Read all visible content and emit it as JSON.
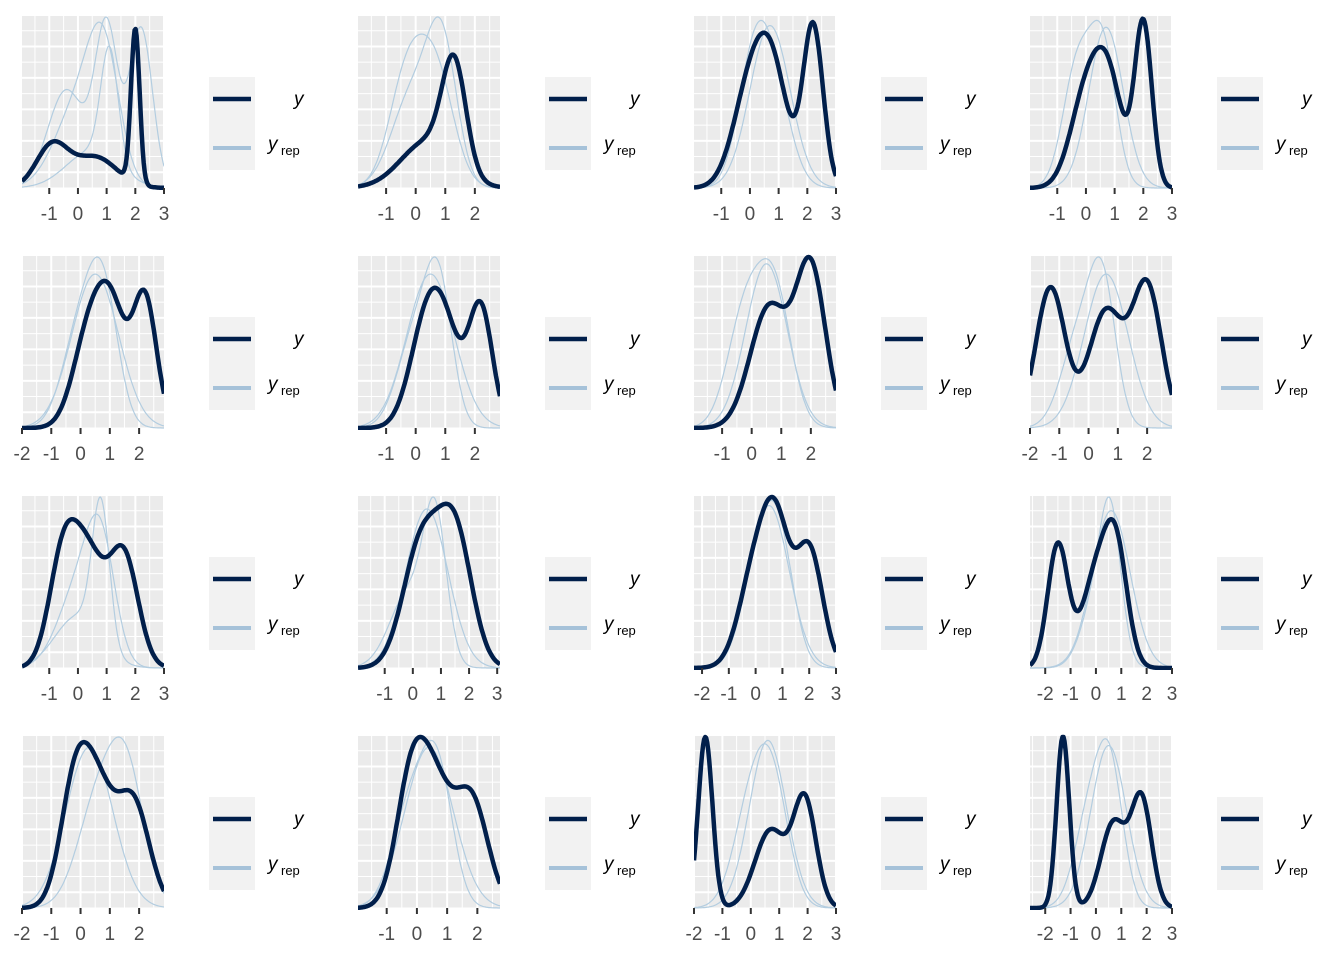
{
  "colors": {
    "y": "#011f4b",
    "yrep": "#b3cde0",
    "yrep_legend": "#a6c2d9",
    "panel_bg": "#ebebeb",
    "grid": "#ffffff",
    "legend_bg": "#f2f2f2",
    "tick_text": "#4d4d4d"
  },
  "legend": {
    "y_label": "y",
    "yrep_label": "y",
    "yrep_sub": "rep"
  },
  "chart_data": [
    {
      "type": "area",
      "xlim": [
        -1.95,
        3.0
      ],
      "ticks": [
        -1,
        0,
        1,
        2,
        3
      ],
      "tick_labels": [
        "-1",
        "0",
        "1",
        "2",
        "3"
      ],
      "y": {
        "m": [
          [
            0.6,
            0.75
          ],
          [
            -0.9,
            0.55
          ],
          [
            2.0,
            0.15
          ]
        ],
        "peak": 0.93
      },
      "yrep": [
        {
          "m": [
            [
              1.0,
              0.4
            ],
            [
              -0.4,
              0.65
            ],
            [
              2.2,
              0.4
            ]
          ],
          "peak": 1.0
        },
        {
          "m": [
            [
              0.5,
              0.9
            ],
            [
              1.1,
              0.3
            ]
          ],
          "peak": 0.83
        },
        {
          "m": [
            [
              0.9,
              0.55
            ],
            [
              0.0,
              0.8
            ]
          ],
          "peak": 0.97
        }
      ]
    },
    {
      "type": "area",
      "xlim": [
        -1.95,
        2.85
      ],
      "ticks": [
        -1,
        0,
        1,
        2
      ],
      "tick_labels": [
        "-1",
        "0",
        "1",
        "2"
      ],
      "y": {
        "m": [
          [
            0.4,
            0.9
          ],
          [
            1.3,
            0.4
          ]
        ],
        "peak": 0.78
      },
      "yrep": [
        {
          "m": [
            [
              0.9,
              0.5
            ],
            [
              -0.1,
              0.7
            ]
          ],
          "peak": 1.0
        },
        {
          "m": [
            [
              0.7,
              0.6
            ],
            [
              -0.3,
              0.6
            ]
          ],
          "peak": 0.9
        }
      ]
    },
    {
      "type": "area",
      "xlim": [
        -1.95,
        3.0
      ],
      "ticks": [
        -1,
        0,
        1,
        2,
        3
      ],
      "tick_labels": [
        "-1",
        "0",
        "1",
        "2",
        "3"
      ],
      "y": {
        "m": [
          [
            0.8,
            0.55
          ],
          [
            0.0,
            0.6
          ],
          [
            2.2,
            0.35
          ]
        ],
        "peak": 0.97
      },
      "yrep": [
        {
          "m": [
            [
              0.8,
              0.6
            ],
            [
              0.1,
              0.55
            ]
          ],
          "peak": 0.98
        },
        {
          "m": [
            [
              0.7,
              0.7
            ]
          ],
          "peak": 0.95
        }
      ]
    },
    {
      "type": "area",
      "xlim": [
        -1.95,
        3.0
      ],
      "ticks": [
        -1,
        0,
        1,
        2,
        3
      ],
      "tick_labels": [
        "-1",
        "0",
        "1",
        "2",
        "3"
      ],
      "y": {
        "m": [
          [
            0.8,
            0.5
          ],
          [
            0.0,
            0.55
          ],
          [
            2.0,
            0.3
          ]
        ],
        "peak": 0.99
      },
      "yrep": [
        {
          "m": [
            [
              0.6,
              0.45
            ],
            [
              -0.3,
              0.5
            ]
          ],
          "peak": 0.98
        },
        {
          "m": [
            [
              0.7,
              0.6
            ]
          ],
          "peak": 0.94
        }
      ]
    },
    {
      "type": "area",
      "xlim": [
        -2.0,
        2.85
      ],
      "ticks": [
        -2,
        -1,
        0,
        1,
        2
      ],
      "tick_labels": [
        "-2",
        "-1",
        "0",
        "1",
        "2"
      ],
      "y": {
        "m": [
          [
            0.3,
            0.55
          ],
          [
            1.1,
            0.5
          ],
          [
            2.2,
            0.4
          ]
        ],
        "peak": 0.86
      },
      "yrep": [
        {
          "m": [
            [
              0.8,
              0.5
            ],
            [
              0.0,
              0.6
            ]
          ],
          "peak": 1.0
        },
        {
          "m": [
            [
              0.5,
              0.8
            ]
          ],
          "peak": 0.9
        }
      ]
    },
    {
      "type": "area",
      "xlim": [
        -1.95,
        2.85
      ],
      "ticks": [
        -1,
        0,
        1,
        2
      ],
      "tick_labels": [
        "-1",
        "0",
        "1",
        "2"
      ],
      "y": {
        "m": [
          [
            0.3,
            0.55
          ],
          [
            1.0,
            0.55
          ],
          [
            2.2,
            0.4
          ]
        ],
        "peak": 0.82
      },
      "yrep": [
        {
          "m": [
            [
              0.8,
              0.45
            ],
            [
              0.0,
              0.6
            ]
          ],
          "peak": 1.0
        },
        {
          "m": [
            [
              0.5,
              0.8
            ]
          ],
          "peak": 0.9
        }
      ]
    },
    {
      "type": "area",
      "xlim": [
        -1.95,
        2.85
      ],
      "ticks": [
        -1,
        0,
        1,
        2
      ],
      "tick_labels": [
        "-1",
        "0",
        "1",
        "2"
      ],
      "y": {
        "m": [
          [
            0.6,
            0.65
          ],
          [
            2.0,
            0.5
          ]
        ],
        "peak": 1.0
      },
      "yrep": [
        {
          "m": [
            [
              0.5,
              0.7
            ]
          ],
          "peak": 0.96
        },
        {
          "m": [
            [
              0.8,
              0.55
            ],
            [
              -0.2,
              0.6
            ]
          ],
          "peak": 0.99
        }
      ]
    },
    {
      "type": "area",
      "xlim": [
        -2.0,
        2.85
      ],
      "ticks": [
        -2,
        -1,
        0,
        1,
        2
      ],
      "tick_labels": [
        "-2",
        "-1",
        "0",
        "1",
        "2"
      ],
      "y": {
        "m": [
          [
            0.6,
            0.6
          ],
          [
            -1.3,
            0.5
          ],
          [
            2.0,
            0.5
          ]
        ],
        "peak": 0.87
      },
      "yrep": [
        {
          "m": [
            [
              0.5,
              0.45
            ],
            [
              -0.3,
              0.6
            ]
          ],
          "peak": 1.0
        },
        {
          "m": [
            [
              0.6,
              0.75
            ]
          ],
          "peak": 0.9
        }
      ]
    },
    {
      "type": "area",
      "xlim": [
        -1.95,
        3.0
      ],
      "ticks": [
        -1,
        0,
        1,
        2,
        3
      ],
      "tick_labels": [
        "-1",
        "0",
        "1",
        "2",
        "3"
      ],
      "y": {
        "m": [
          [
            0.4,
            0.55
          ],
          [
            -0.5,
            0.5
          ],
          [
            1.6,
            0.5
          ]
        ],
        "peak": 0.87
      },
      "yrep": [
        {
          "m": [
            [
              0.8,
              0.3
            ],
            [
              0.0,
              0.8
            ]
          ],
          "peak": 1.0
        },
        {
          "m": [
            [
              0.8,
              0.5
            ],
            [
              0.0,
              0.7
            ]
          ],
          "peak": 0.9
        }
      ]
    },
    {
      "type": "area",
      "xlim": [
        -1.95,
        3.1
      ],
      "ticks": [
        -1,
        0,
        1,
        2,
        3
      ],
      "tick_labels": [
        "-1",
        "0",
        "1",
        "2",
        "3"
      ],
      "y": {
        "m": [
          [
            0.3,
            0.65
          ],
          [
            1.5,
            0.6
          ]
        ],
        "peak": 0.96
      },
      "yrep": [
        {
          "m": [
            [
              0.8,
              0.4
            ],
            [
              -0.1,
              0.7
            ]
          ],
          "peak": 1.0
        },
        {
          "m": [
            [
              0.5,
              0.75
            ]
          ],
          "peak": 0.93
        }
      ]
    },
    {
      "type": "area",
      "xlim": [
        -2.3,
        3.0
      ],
      "ticks": [
        -2,
        -1,
        0,
        1,
        2,
        3
      ],
      "tick_labels": [
        "-2",
        "-1",
        "0",
        "1",
        "2",
        "3"
      ],
      "y": {
        "m": [
          [
            0.8,
            0.5
          ],
          [
            0.0,
            0.6
          ],
          [
            2.0,
            0.5
          ]
        ],
        "peak": 1.0
      },
      "yrep": [
        {
          "m": [
            [
              0.5,
              0.75
            ]
          ],
          "peak": 0.95
        },
        {
          "m": [
            [
              0.9,
              0.55
            ],
            [
              0.1,
              0.6
            ]
          ],
          "peak": 0.98
        }
      ]
    },
    {
      "type": "area",
      "xlim": [
        -2.6,
        3.0
      ],
      "ticks": [
        -2,
        -1,
        0,
        1,
        2,
        3
      ],
      "tick_labels": [
        "-2",
        "-1",
        "0",
        "1",
        "2",
        "3"
      ],
      "y": {
        "m": [
          [
            0.8,
            0.45
          ],
          [
            0.0,
            0.55
          ],
          [
            -1.5,
            0.4
          ]
        ],
        "peak": 0.87
      },
      "yrep": [
        {
          "m": [
            [
              0.6,
              0.4
            ],
            [
              0.1,
              0.6
            ]
          ],
          "peak": 1.0
        },
        {
          "m": [
            [
              0.6,
              0.75
            ]
          ],
          "peak": 0.92
        }
      ]
    },
    {
      "type": "area",
      "xlim": [
        -2.0,
        2.85
      ],
      "ticks": [
        -2,
        -1,
        0,
        1,
        2
      ],
      "tick_labels": [
        "-2",
        "-1",
        "0",
        "1",
        "2"
      ],
      "y": {
        "m": [
          [
            0.6,
            0.55
          ],
          [
            -0.2,
            0.5
          ],
          [
            1.8,
            0.55
          ]
        ],
        "peak": 0.97
      },
      "yrep": [
        {
          "m": [
            [
              0.6,
              0.7
            ],
            [
              1.6,
              0.6
            ]
          ],
          "peak": 1.0
        },
        {
          "m": [
            [
              0.3,
              0.8
            ]
          ],
          "peak": 0.94
        }
      ]
    },
    {
      "type": "area",
      "xlim": [
        -1.95,
        2.75
      ],
      "ticks": [
        -1,
        0,
        1,
        2
      ],
      "tick_labels": [
        "-1",
        "0",
        "1",
        "2"
      ],
      "y": {
        "m": [
          [
            0.6,
            0.55
          ],
          [
            -0.2,
            0.5
          ],
          [
            1.8,
            0.55
          ]
        ],
        "peak": 1.0
      },
      "yrep": [
        {
          "m": [
            [
              0.7,
              0.5
            ],
            [
              -0.2,
              0.6
            ]
          ],
          "peak": 0.98
        },
        {
          "m": [
            [
              0.4,
              0.8
            ]
          ],
          "peak": 0.94
        }
      ]
    },
    {
      "type": "area",
      "xlim": [
        -2.0,
        3.0
      ],
      "ticks": [
        -2,
        -1,
        0,
        1,
        2,
        3
      ],
      "tick_labels": [
        "-2",
        "-1",
        "0",
        "1",
        "2",
        "3"
      ],
      "y": {
        "m": [
          [
            0.7,
            0.55
          ],
          [
            -1.6,
            0.25
          ],
          [
            1.9,
            0.4
          ]
        ],
        "peak": 1.0
      },
      "yrep": [
        {
          "m": [
            [
              0.6,
              0.65
            ]
          ],
          "peak": 0.98
        },
        {
          "m": [
            [
              0.8,
              0.55
            ],
            [
              0.0,
              0.6
            ]
          ],
          "peak": 0.96
        }
      ]
    },
    {
      "type": "area",
      "xlim": [
        -2.6,
        3.0
      ],
      "ticks": [
        -2,
        -1,
        0,
        1,
        2,
        3
      ],
      "tick_labels": [
        "-2",
        "-1",
        "0",
        "1",
        "2",
        "3"
      ],
      "y": {
        "m": [
          [
            0.7,
            0.5
          ],
          [
            -1.3,
            0.25
          ],
          [
            1.8,
            0.4
          ]
        ],
        "peak": 1.0
      },
      "yrep": [
        {
          "m": [
            [
              0.6,
              0.5
            ],
            [
              -0.2,
              0.6
            ]
          ],
          "peak": 0.99
        },
        {
          "m": [
            [
              0.5,
              0.7
            ]
          ],
          "peak": 0.95
        }
      ]
    }
  ]
}
